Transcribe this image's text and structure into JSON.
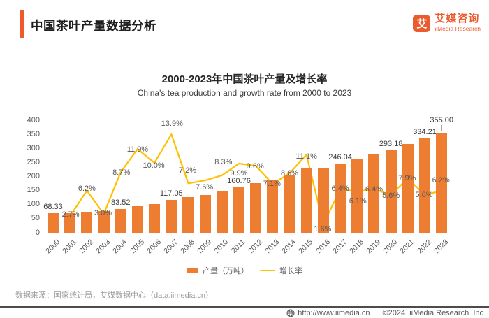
{
  "accent_color": "#F0592B",
  "header": {
    "title": "中国茶叶产量数据分析"
  },
  "logo": {
    "icon_char": "艾",
    "name_cn": "艾媒咨询",
    "name_en": "iiMedia Research",
    "color": "#EA5B2D"
  },
  "chart": {
    "title": "2000-2023年中国茶叶产量及增长率",
    "subtitle": "China's tea production and growth rate from 2000 to 2023"
  },
  "chart_data": {
    "type": "bar+line",
    "categories": [
      "2000",
      "2001",
      "2002",
      "2003",
      "2004",
      "2005",
      "2006",
      "2007",
      "2008",
      "2009",
      "2010",
      "2011",
      "2012",
      "2013",
      "2014",
      "2015",
      "2016",
      "2017",
      "2018",
      "2019",
      "2020",
      "2021",
      "2022",
      "2023"
    ],
    "series": [
      {
        "name": "产量（万吨）",
        "type": "bar",
        "color": "#ED7D31",
        "axis": "left",
        "values": [
          68.33,
          70.17,
          74.52,
          76.76,
          83.52,
          93.46,
          102.81,
          117.05,
          125.48,
          135.01,
          146.22,
          160.76,
          176.19,
          188.7,
          204.93,
          227.66,
          231.3,
          246.04,
          261.05,
          277.76,
          293.18,
          316.35,
          334.21,
          355.0
        ],
        "shown_point_labels": {
          "2000": "68.33",
          "2004": "83.52",
          "2007": "117.05",
          "2011": "160.76",
          "2017": "246.04",
          "2020": "293.18",
          "2022": "334.21",
          "2023": "355.00"
        }
      },
      {
        "name": "增长率",
        "type": "line",
        "color": "#FFC000",
        "axis": "right-hidden",
        "values": [
          null,
          2.7,
          6.2,
          3.0,
          8.7,
          11.9,
          10.0,
          13.9,
          7.2,
          7.6,
          8.3,
          9.9,
          9.6,
          7.1,
          8.6,
          11.1,
          1.6,
          6.4,
          6.1,
          6.4,
          5.6,
          7.9,
          5.6,
          6.2
        ],
        "label_format": "{value}%"
      }
    ],
    "ylim_left": [
      0,
      400
    ],
    "yticks_left": [
      0,
      50,
      100,
      150,
      200,
      250,
      300,
      350,
      400
    ],
    "grid": false,
    "legend_position": "bottom"
  },
  "source_note": "数据来源：国家统计局，艾媒数据中心（data.iimedia.cn）",
  "footer": {
    "url": "http://www.iimedia.cn",
    "copyright": "©2024  iiMedia Research  Inc"
  }
}
